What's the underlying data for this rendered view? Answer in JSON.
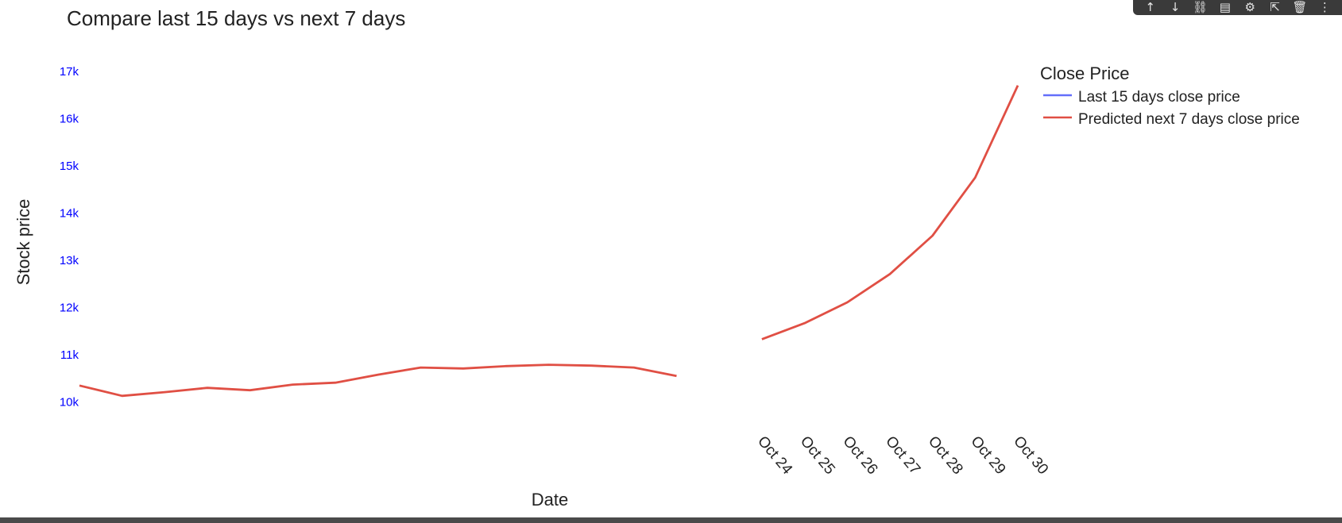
{
  "toolbar": {
    "icons": [
      {
        "name": "arrow-up-icon",
        "glyph": "↑"
      },
      {
        "name": "arrow-down-icon",
        "glyph": "↓"
      },
      {
        "name": "link-icon",
        "glyph": "⛓"
      },
      {
        "name": "comment-icon",
        "glyph": "▤"
      },
      {
        "name": "gear-icon",
        "glyph": "⚙"
      },
      {
        "name": "export-icon",
        "glyph": "⇱"
      },
      {
        "name": "trash-icon",
        "glyph": "🗑"
      },
      {
        "name": "more-icon",
        "glyph": "⋮"
      }
    ]
  },
  "chart_data": {
    "type": "line",
    "title": "Compare last 15 days vs next 7 days",
    "xlabel": "Date",
    "ylabel": "Stock price",
    "y_ticks": [
      {
        "value": 10000,
        "label": "10k"
      },
      {
        "value": 11000,
        "label": "11k"
      },
      {
        "value": 12000,
        "label": "12k"
      },
      {
        "value": 13000,
        "label": "13k"
      },
      {
        "value": 14000,
        "label": "14k"
      },
      {
        "value": 15000,
        "label": "15k"
      },
      {
        "value": 16000,
        "label": "16k"
      },
      {
        "value": 17000,
        "label": "17k"
      }
    ],
    "x_tick_labels": [
      "Oct 24",
      "Oct 25",
      "Oct 26",
      "Oct 27",
      "Oct 28",
      "Oct 29",
      "Oct 30"
    ],
    "y_tick_color": "#0000ff",
    "legend": {
      "title": "Close Price",
      "position": "top-right",
      "items": [
        {
          "label": "Last 15 days close price",
          "color": "#636efa"
        },
        {
          "label": "Predicted next 7 days close price",
          "color": "#e04f44"
        }
      ]
    },
    "series": [
      {
        "name": "Predicted next 7 days close price",
        "color": "#e04f44",
        "segments": [
          {
            "x": [
              1,
              2,
              3,
              4,
              5,
              6,
              7,
              8,
              9,
              10,
              11,
              12,
              13,
              14,
              15
            ],
            "y": [
              10350,
              10130,
              10210,
              10300,
              10250,
              10370,
              10410,
              10580,
              10730,
              10710,
              10760,
              10790,
              10770,
              10730,
              10550
            ]
          },
          {
            "x": [
              17,
              18,
              19,
              20,
              21,
              22,
              23
            ],
            "y": [
              11330,
              11670,
              12110,
              12710,
              13520,
              14750,
              16700
            ]
          }
        ]
      }
    ],
    "x_tick_positions": [
      17,
      18,
      19,
      20,
      21,
      22,
      23
    ],
    "xlim": [
      1,
      23
    ],
    "ylim": [
      9170,
      17300
    ]
  }
}
